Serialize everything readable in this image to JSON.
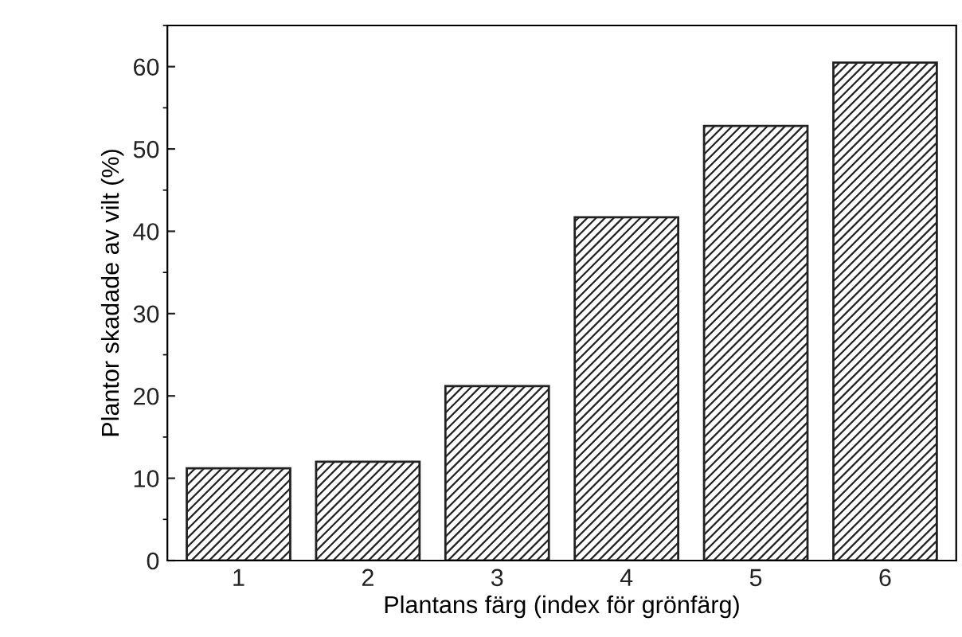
{
  "chart_data": {
    "type": "bar",
    "xlabel": "Plantans färg (index för grönfärg)",
    "ylabel": "Plantor skadade av vilt (%)",
    "categories": [
      "1",
      "2",
      "3",
      "4",
      "5",
      "6"
    ],
    "values": [
      11.2,
      12.0,
      21.2,
      41.7,
      52.8,
      60.5
    ],
    "color": "#222222",
    "ylim": [
      0,
      65
    ],
    "yticks": [
      0,
      10,
      20,
      30,
      40,
      50,
      60
    ],
    "grid": false
  }
}
